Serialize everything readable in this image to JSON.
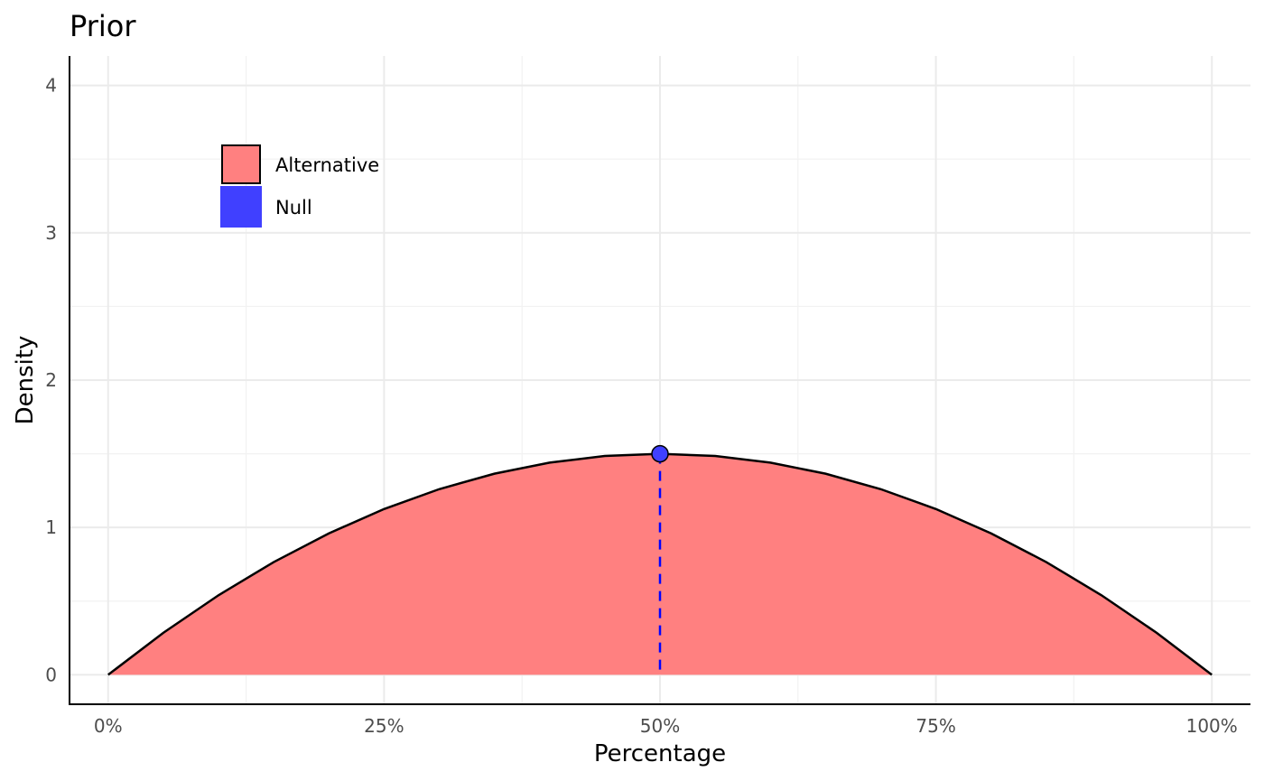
{
  "chart_data": {
    "type": "area",
    "title": "Prior",
    "xlabel": "Percentage",
    "ylabel": "Density",
    "xlim": [
      -0.035,
      1.035
    ],
    "ylim": [
      -0.2,
      4.2
    ],
    "x_ticks": [
      0,
      0.25,
      0.5,
      0.75,
      1.0
    ],
    "x_tick_labels": [
      "0%",
      "25%",
      "50%",
      "75%",
      "100%"
    ],
    "y_ticks": [
      0,
      1,
      2,
      3,
      4
    ],
    "y_tick_labels": [
      "0",
      "1",
      "2",
      "3",
      "4"
    ],
    "grid": true,
    "legend_position": "top-left",
    "series": [
      {
        "name": "Alternative",
        "kind": "area",
        "distribution": "beta(2,2)",
        "x": [
          0,
          0.05,
          0.1,
          0.15,
          0.2,
          0.25,
          0.3,
          0.35,
          0.4,
          0.45,
          0.5,
          0.55,
          0.6,
          0.65,
          0.7,
          0.75,
          0.8,
          0.85,
          0.9,
          0.95,
          1.0
        ],
        "y": [
          0,
          0.285,
          0.54,
          0.765,
          0.96,
          1.125,
          1.26,
          1.365,
          1.44,
          1.485,
          1.5,
          1.485,
          1.44,
          1.365,
          1.26,
          1.125,
          0.96,
          0.765,
          0.54,
          0.285,
          0
        ],
        "fill": "#ff8080",
        "stroke": "#000000"
      },
      {
        "name": "Null",
        "kind": "point",
        "x": 0.5,
        "y": 1.5,
        "fill": "#4040ff",
        "line_color": "#0000ff"
      }
    ]
  }
}
